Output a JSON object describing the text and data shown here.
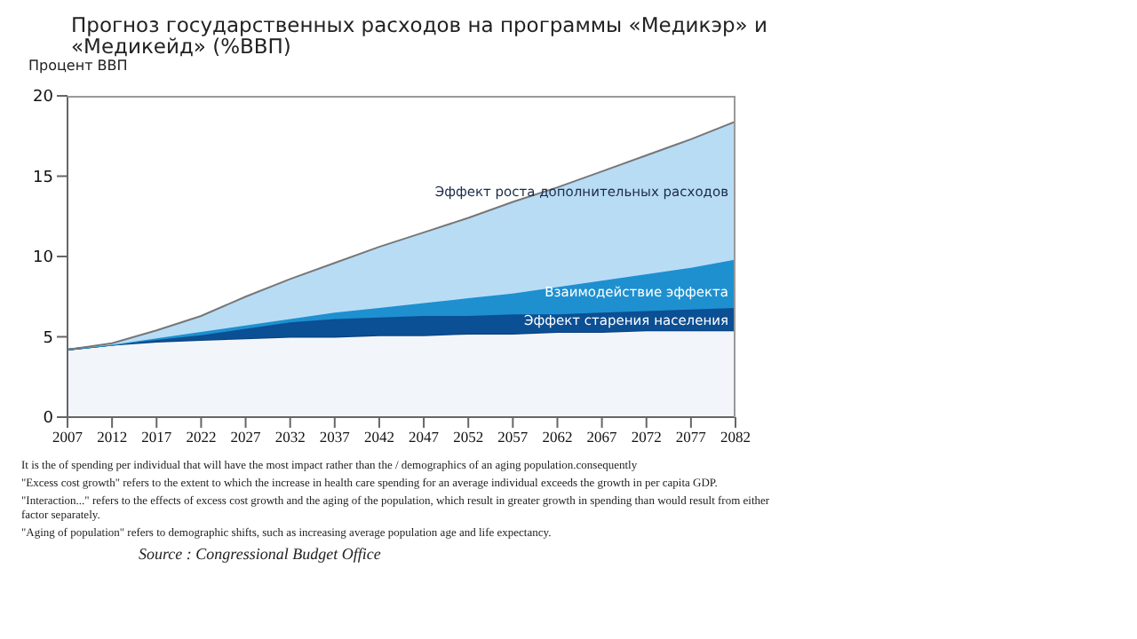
{
  "chart_data": {
    "type": "area",
    "stacked": true,
    "title": "Прогноз государственных расходов на программы «Медикэр» и «Медикейд» (%ВВП)",
    "ylabel": "Процент ВВП",
    "x": [
      2007,
      2012,
      2017,
      2022,
      2027,
      2032,
      2037,
      2042,
      2047,
      2052,
      2057,
      2062,
      2067,
      2072,
      2077,
      2082
    ],
    "xlim": [
      2007,
      2082
    ],
    "xticks": [
      2007,
      2012,
      2017,
      2022,
      2027,
      2032,
      2037,
      2042,
      2047,
      2052,
      2057,
      2062,
      2067,
      2072,
      2077,
      2082
    ],
    "ylim": [
      0,
      20
    ],
    "yticks": [
      0,
      5,
      10,
      15,
      20
    ],
    "grid": false,
    "series": [
      {
        "color": "#f2f6fa",
        "values": [
          4.2,
          4.5,
          4.7,
          4.8,
          4.9,
          5.0,
          5.0,
          5.1,
          5.1,
          5.2,
          5.2,
          5.3,
          5.3,
          5.4,
          5.4,
          5.4
        ]
      },
      {
        "name": "Эффект старения населения",
        "color": "#0b4f94",
        "values": [
          0,
          0,
          0.1,
          0.3,
          0.6,
          0.9,
          1.1,
          1.1,
          1.2,
          1.1,
          1.2,
          1.1,
          1.2,
          1.2,
          1.3,
          1.4
        ]
      },
      {
        "name": "Взаимодействие эффекта",
        "color": "#1e90d0",
        "values": [
          0,
          0,
          0.1,
          0.2,
          0.2,
          0.2,
          0.4,
          0.6,
          0.8,
          1.1,
          1.3,
          1.7,
          2.0,
          2.3,
          2.6,
          3.0
        ]
      },
      {
        "name": "Эффект роста дополнительных расходов",
        "color": "#b9dcf5",
        "values": [
          0,
          0.1,
          0.5,
          1.0,
          1.8,
          2.5,
          3.1,
          3.8,
          4.4,
          5.0,
          5.7,
          6.2,
          6.8,
          7.4,
          8.0,
          8.6
        ]
      }
    ],
    "annotations": [
      "It is the  of spending per individual that will have the most impact rather than the  / demographics of an aging population.consequently",
      "\"Excess cost growth\" refers to the extent to which the increase in health care  spending for an average individual exceeds the growth in per capita GDP.",
      "\"Interaction...\" refers to the effects of excess cost growth and the aging of the population, which result in greater growth in spending than would result from either factor separately.",
      "\"Aging of population\" refers to demographic shifts, such as increasing average population age and life expectancy.",
      "Source : Congressional Budget Office"
    ]
  }
}
